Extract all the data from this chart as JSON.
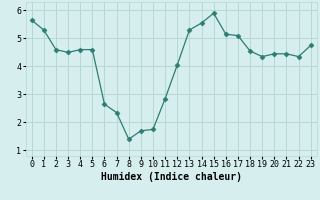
{
  "x": [
    0,
    1,
    2,
    3,
    4,
    5,
    6,
    7,
    8,
    9,
    10,
    11,
    12,
    13,
    14,
    15,
    16,
    17,
    18,
    19,
    20,
    21,
    22,
    23
  ],
  "y": [
    5.65,
    5.3,
    4.6,
    4.5,
    4.6,
    4.6,
    2.65,
    2.35,
    1.4,
    1.7,
    1.75,
    2.85,
    4.05,
    5.3,
    5.55,
    5.9,
    5.15,
    5.1,
    4.55,
    4.35,
    4.45,
    4.45,
    4.35,
    4.75
  ],
  "xlabel": "Humidex (Indice chaleur)",
  "xlim": [
    -0.5,
    23.5
  ],
  "ylim": [
    0.8,
    6.3
  ],
  "yticks": [
    1,
    2,
    3,
    4,
    5,
    6
  ],
  "xtick_labels": [
    "0",
    "1",
    "2",
    "3",
    "4",
    "5",
    "6",
    "7",
    "8",
    "9",
    "10",
    "11",
    "12",
    "13",
    "14",
    "15",
    "16",
    "17",
    "18",
    "19",
    "20",
    "21",
    "22",
    "23"
  ],
  "line_color": "#2e7d72",
  "marker": "D",
  "marker_size": 2.5,
  "bg_color": "#d6eeee",
  "grid_color": "#b8d8d8",
  "label_fontsize": 7,
  "tick_fontsize": 6
}
